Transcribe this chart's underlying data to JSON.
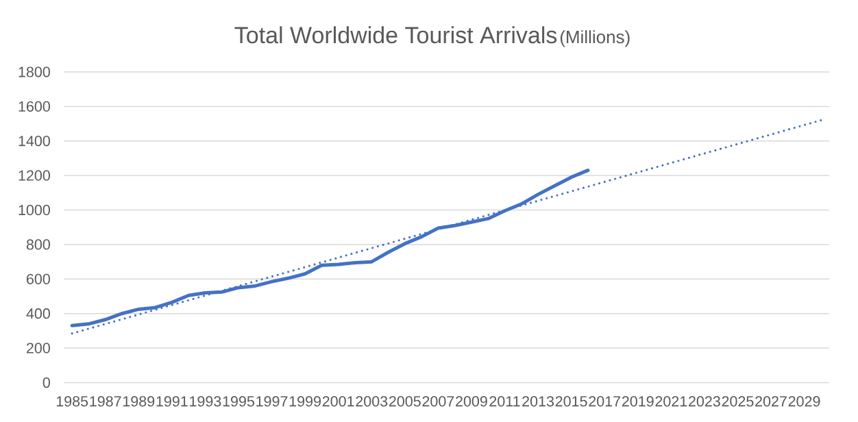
{
  "chart_data": {
    "type": "line",
    "title": "Total Worldwide Tourist Arrivals",
    "subtitle": "(Millions)",
    "xlim": [
      1984.5,
      2030.5
    ],
    "xticks": [
      1985,
      1987,
      1989,
      1991,
      1993,
      1995,
      1997,
      1999,
      2001,
      2003,
      2005,
      2007,
      2009,
      2011,
      2013,
      2015,
      2017,
      2019,
      2021,
      2023,
      2025,
      2027,
      2029
    ],
    "ylim": [
      0,
      1800
    ],
    "yticks": [
      0,
      200,
      400,
      600,
      800,
      1000,
      1200,
      1400,
      1600,
      1800
    ],
    "grid": "y",
    "series": [
      {
        "color": "#4472c4",
        "line_style": "solid",
        "x": [
          1985,
          1986,
          1987,
          1988,
          1989,
          1990,
          1991,
          1992,
          1993,
          1994,
          1995,
          1996,
          1997,
          1998,
          1999,
          2000,
          2001,
          2002,
          2003,
          2004,
          2005,
          2006,
          2007,
          2008,
          2009,
          2010,
          2011,
          2012,
          2013,
          2014,
          2015,
          2016
        ],
        "values": [
          330,
          340,
          365,
          400,
          425,
          435,
          465,
          505,
          520,
          525,
          550,
          560,
          585,
          605,
          630,
          680,
          685,
          695,
          700,
          755,
          805,
          845,
          895,
          910,
          930,
          950,
          995,
          1035,
          1090,
          1140,
          1190,
          1230
        ]
      },
      {
        "color": "#4472c4",
        "line_style": "dotted",
        "x": [
          1985,
          2030
        ],
        "values": [
          285,
          1520
        ]
      }
    ]
  }
}
